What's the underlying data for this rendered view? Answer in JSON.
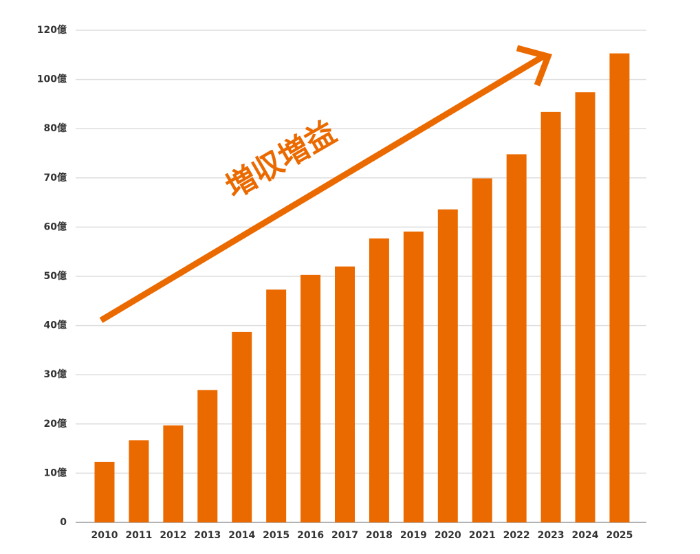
{
  "chart_data": {
    "type": "bar",
    "annotation": "増収増益",
    "categories": [
      "2010",
      "2011",
      "2012",
      "2013",
      "2014",
      "2015",
      "2016",
      "2017",
      "2018",
      "2019",
      "2020",
      "2021",
      "2022",
      "2023",
      "2024",
      "2025"
    ],
    "values": [
      12.3,
      16.7,
      19.7,
      26.9,
      38.7,
      47.3,
      50.3,
      52.0,
      57.7,
      59.1,
      63.6,
      69.9,
      74.8,
      86.8,
      94.8,
      110.6
    ],
    "color": "#eb6a00",
    "ylim": [
      0,
      120
    ],
    "yticks": [
      0,
      {
        "value": 10,
        "label": "10億"
      },
      {
        "value": 20,
        "label": "20億"
      },
      {
        "value": 30,
        "label": "30億"
      },
      {
        "value": 40,
        "label": "40億"
      },
      {
        "value": 50,
        "label": "50億"
      },
      {
        "value": 60,
        "label": "60億"
      },
      {
        "value": 70,
        "label": "70億"
      },
      {
        "value": 80,
        "label": "80億"
      },
      {
        "value": 100,
        "label": "100億"
      },
      {
        "value": 120,
        "label": "120億"
      }
    ],
    "grid": true
  }
}
